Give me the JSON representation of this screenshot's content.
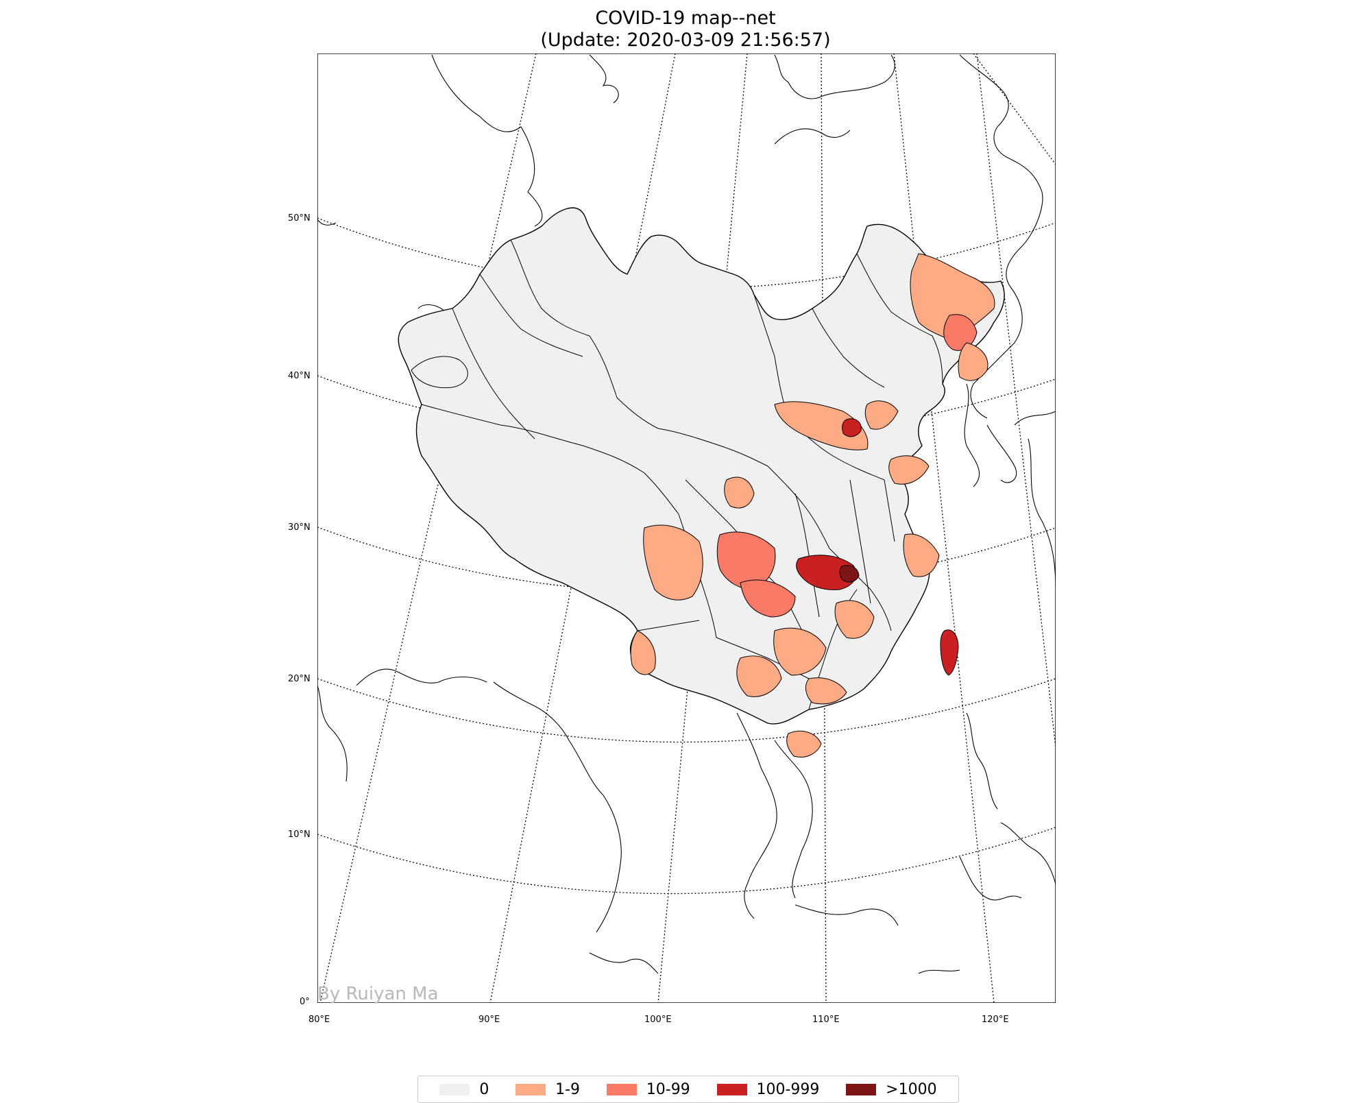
{
  "title": "COVID-19 map--net",
  "subtitle": "(Update: 2020-03-09 21:56:57)",
  "credit": "By Ruiyan Ma",
  "latitude_labels": [
    "50°N",
    "40°N",
    "30°N",
    "20°N",
    "10°N",
    "0°"
  ],
  "longitude_labels": [
    "80°E",
    "90°E",
    "100°E",
    "110°E",
    "120°E"
  ],
  "colors": {
    "zero": "#f0f0f0",
    "low": "#fcab85",
    "mid": "#fa7a68",
    "high": "#c92022",
    "top": "#7d1416",
    "coast": "#000000"
  },
  "legend": [
    {
      "label": "0",
      "color": "#f0f0f0"
    },
    {
      "label": "1-9",
      "color": "#fcab85"
    },
    {
      "label": "10-99",
      "color": "#fa7a68"
    },
    {
      "label": "100-999",
      "color": "#c92022"
    },
    {
      "label": ">1000",
      "color": "#7d1416"
    }
  ]
}
